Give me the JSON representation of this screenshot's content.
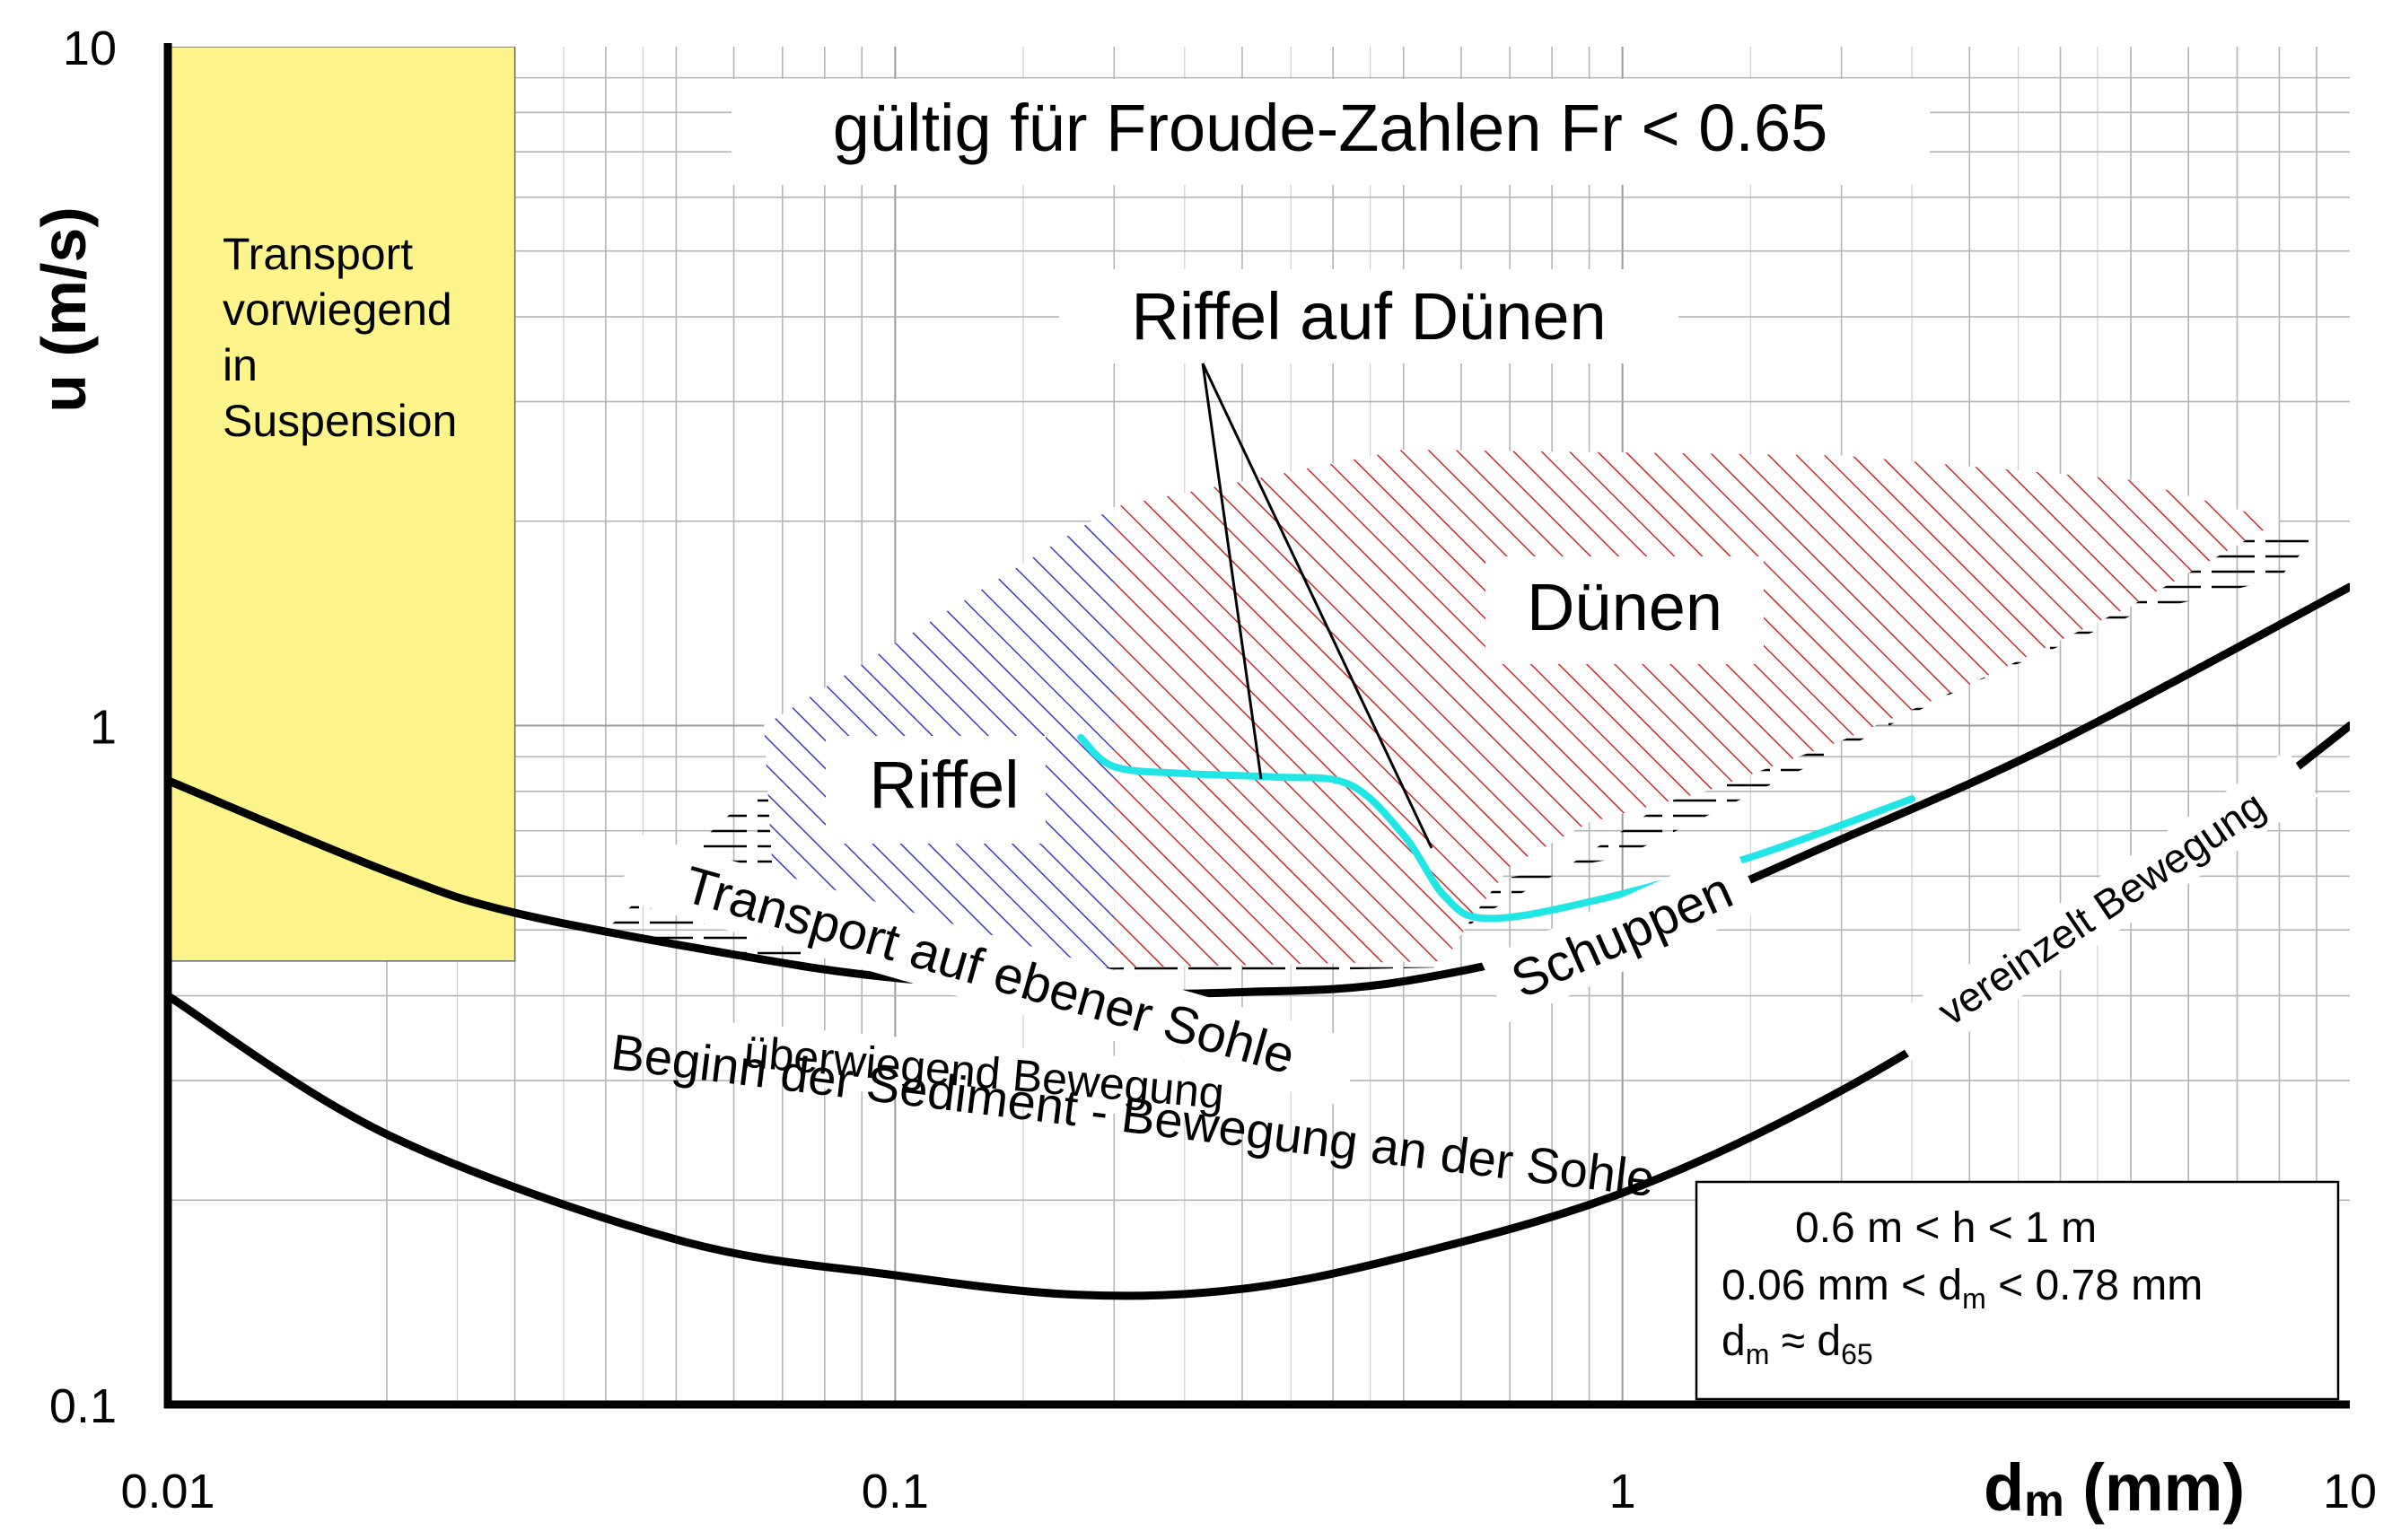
{
  "chart_data": {
    "type": "line",
    "title": "gültig für Froude-Zahlen Fr < 0.65",
    "xlabel": {
      "main": "d",
      "sub": "m",
      "unit": " (mm)"
    },
    "ylabel": "u (m/s)",
    "x_scale": "log",
    "y_scale": "log",
    "xlim": [
      0.01,
      10
    ],
    "ylim": [
      0.1,
      10
    ],
    "x_ticks": [
      {
        "value": 0.01,
        "label": "0.01"
      },
      {
        "value": 0.1,
        "label": "0.1"
      },
      {
        "value": 1,
        "label": "1"
      },
      {
        "value": 10,
        "label": "10"
      }
    ],
    "y_ticks": [
      {
        "value": 0.1,
        "label": "0.1"
      },
      {
        "value": 1,
        "label": "1"
      },
      {
        "value": 10,
        "label": "10"
      }
    ],
    "grid": true,
    "colors": {
      "suspension_fill": "#fdf58c",
      "riffel_hatch": "#3a3ac8",
      "dunes_hatch": "#cc2a2a",
      "flat_hatch": "#000000",
      "transition_line": "#22e6e6",
      "curve": "#000000"
    },
    "series": [
      {
        "name": "Transport auf ebener Sohle",
        "x": [
          0.01,
          0.02,
          0.03,
          0.06,
          0.1,
          0.2,
          0.3,
          0.5,
          1,
          2,
          4,
          10
        ],
        "y": [
          0.83,
          0.61,
          0.53,
          0.46,
          0.425,
          0.405,
          0.405,
          0.42,
          0.5,
          0.68,
          0.95,
          1.6
        ]
      },
      {
        "name": "vereinzelt Bewegung",
        "x": [
          0.01,
          0.02,
          0.05,
          0.1,
          0.18,
          0.3,
          0.5,
          1,
          2,
          4,
          6,
          10
        ],
        "y": [
          0.4,
          0.25,
          0.175,
          0.155,
          0.145,
          0.148,
          0.165,
          0.205,
          0.29,
          0.46,
          0.65,
          1.0
        ]
      },
      {
        "name": "Riffel / Dünen",
        "x": [
          0.18,
          0.2,
          0.25,
          0.33,
          0.42,
          0.5,
          0.57,
          0.65,
          0.9,
          1.5,
          2.5
        ],
        "y": [
          0.96,
          0.87,
          0.85,
          0.84,
          0.82,
          0.69,
          0.56,
          0.52,
          0.55,
          0.64,
          0.78
        ]
      }
    ],
    "regions": [
      {
        "name": "Transport vorwiegend in Suspension",
        "x": [
          0.01,
          0.03
        ],
        "y": [
          0.45,
          10
        ]
      },
      {
        "name": "Riffel",
        "polygon": [
          [
            0.066,
            1.0
          ],
          [
            0.2,
            2.1
          ],
          [
            0.2,
            0.44
          ],
          [
            0.12,
            0.44
          ],
          [
            0.09,
            0.5
          ],
          [
            0.068,
            0.58
          ]
        ]
      },
      {
        "name": "Dünen",
        "polygon": [
          [
            0.2,
            2.1
          ],
          [
            0.5,
            2.55
          ],
          [
            2,
            2.5
          ],
          [
            5,
            2.3
          ],
          [
            8,
            2.0
          ],
          [
            5,
            1.5
          ],
          [
            3,
            1.15
          ],
          [
            2,
            0.95
          ],
          [
            1.3,
            0.8
          ],
          [
            0.9,
            0.72
          ],
          [
            0.7,
            0.62
          ],
          [
            0.62,
            0.52
          ],
          [
            0.57,
            0.45
          ],
          [
            0.2,
            0.44
          ]
        ]
      },
      {
        "name": "Transport auf ebener Sohle (Schraffur)",
        "polygon": [
          [
            0.2,
            0.43
          ],
          [
            0.06,
            0.46
          ],
          [
            0.04,
            0.5
          ],
          [
            0.06,
            0.75
          ],
          [
            0.09,
            0.98
          ],
          [
            0.12,
            1.0
          ],
          [
            0.2,
            0.9
          ],
          [
            0.4,
            0.75
          ],
          [
            0.6,
            0.58
          ],
          [
            1,
            0.64
          ],
          [
            2,
            0.92
          ],
          [
            3,
            1.15
          ],
          [
            5,
            1.45
          ],
          [
            8,
            1.65
          ],
          [
            9,
            1.9
          ],
          [
            5,
            2.05
          ],
          [
            3,
            1.6
          ],
          [
            2,
            1.15
          ],
          [
            1,
            0.7
          ],
          [
            0.8,
            0.6
          ],
          [
            0.63,
            0.52
          ],
          [
            0.55,
            0.44
          ]
        ]
      }
    ],
    "annotations": {
      "suspension": [
        "Transport",
        "vorwiegend",
        "in",
        "Suspension"
      ],
      "riffel_auf_duenen": "Riffel auf Dünen",
      "duenen": "Dünen",
      "riffel": "Riffel",
      "transport_ebene": "Transport auf ebener Sohle",
      "schuppen": "Schuppen",
      "ueberwiegend": "überwiegend Bewegung",
      "beginn": "Beginn der Sediment - Bewegung an der Sohle",
      "vereinzelt": "vereinzelt Bewegung"
    },
    "legend_box": {
      "position": "bottom-right",
      "line1": "0.6 m < h < 1 m",
      "line2": {
        "a": "0.06 mm < d",
        "a_sub": "m",
        "b": " < 0.78 mm"
      },
      "line3": {
        "a": "d",
        "a_sub": "m",
        "b": " ≈ d",
        "b_sub": "65"
      }
    }
  }
}
